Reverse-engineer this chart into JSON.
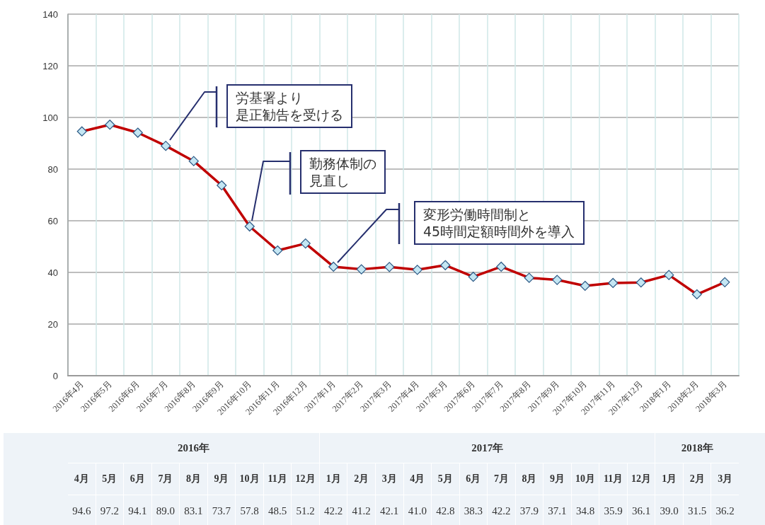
{
  "chart_data": {
    "type": "line",
    "categories": [
      "2016年4月",
      "2016年5月",
      "2016年6月",
      "2016年7月",
      "2016年8月",
      "2016年9月",
      "2016年10月",
      "2016年11月",
      "2016年12月",
      "2017年1月",
      "2017年2月",
      "2017年3月",
      "2017年4月",
      "2017年5月",
      "2017年6月",
      "2017年7月",
      "2017年8月",
      "2017年9月",
      "2017年10月",
      "2017年11月",
      "2017年12月",
      "2018年1月",
      "2018年2月",
      "2018年3月"
    ],
    "values": [
      94.6,
      97.2,
      94.1,
      89.0,
      83.1,
      73.7,
      57.8,
      48.5,
      51.2,
      42.2,
      41.2,
      42.1,
      41.0,
      42.8,
      38.3,
      42.2,
      37.9,
      37.1,
      34.8,
      35.9,
      36.1,
      39.0,
      31.5,
      36.2
    ],
    "color": "#c00000",
    "marker": "diamond",
    "ylim": [
      0,
      140
    ],
    "yticks": [
      0,
      20,
      40,
      60,
      80,
      100,
      120,
      140
    ],
    "grid": true,
    "value_labels": [
      "94.6",
      "97.2",
      "94.1",
      "89.0",
      "83.1",
      "73.7",
      "57.8",
      "48.5",
      "51.2",
      "42.2",
      "41.2",
      "42.1",
      "41.0",
      "42.8",
      "38.3",
      "42.2",
      "37.9",
      "37.1",
      "34.8",
      "35.9",
      "36.1",
      "39.0",
      "31.5",
      "36.2"
    ],
    "annotations": [
      "労基署より是正勧告を受ける",
      "勤務体制の見直し",
      "変形労働時間制と\n45時間定額時間外を導入",
      "2016年",
      "2017年",
      "2018年",
      "4月",
      "5月",
      "6月",
      "7月",
      "8月",
      "9月",
      "10月",
      "11月",
      "12月",
      "1月",
      "2月",
      "3月",
      "4月",
      "5月",
      "6月",
      "7月",
      "8月",
      "9月",
      "10月",
      "11月",
      "12月",
      "1月",
      "2月",
      "3月"
    ]
  }
}
